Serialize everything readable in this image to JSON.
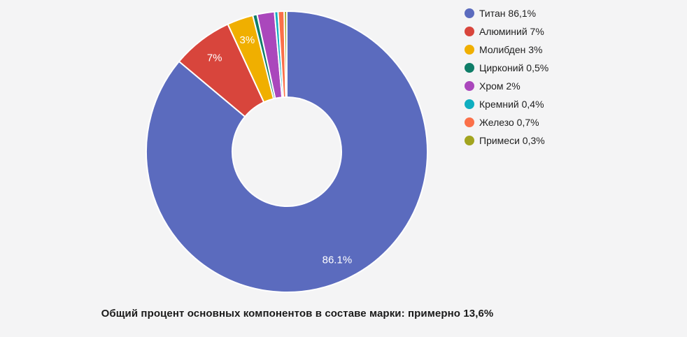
{
  "background_color": "#f4f4f5",
  "chart_data": {
    "type": "pie",
    "subtype": "donut",
    "title": "",
    "categories": [
      "Титан",
      "Алюминий",
      "Молибден",
      "Цирконий",
      "Хром",
      "Кремний",
      "Железо",
      "Примеси"
    ],
    "values": [
      86.1,
      7,
      3,
      0.5,
      2,
      0.4,
      0.7,
      0.3
    ],
    "colors": [
      "#5B6BBE",
      "#D8453C",
      "#F0AF00",
      "#0F7D68",
      "#AA47BC",
      "#0FAEC0",
      "#FB7049",
      "#A2A41F"
    ],
    "slice_labels": [
      "86.1%",
      "7%",
      "3%",
      "",
      "",
      "",
      "",
      ""
    ],
    "slice_label_color": "#ffffff",
    "slice_separator_color": "#ffffff",
    "start_angle_deg": 0,
    "direction": "clockwise",
    "inner_radius_ratio": 0.39,
    "legend_position": "right",
    "hole_color": "#f4f4f5"
  },
  "legend": {
    "items": [
      {
        "label": "Титан 86,1%",
        "color": "#5B6BBE"
      },
      {
        "label": "Алюминий 7%",
        "color": "#D8453C"
      },
      {
        "label": "Молибден 3%",
        "color": "#F0AF00"
      },
      {
        "label": "Цирконий 0,5%",
        "color": "#0F7D68"
      },
      {
        "label": "Хром 2%",
        "color": "#AA47BC"
      },
      {
        "label": "Кремний 0,4%",
        "color": "#0FAEC0"
      },
      {
        "label": "Железо 0,7%",
        "color": "#FB7049"
      },
      {
        "label": "Примеси 0,3%",
        "color": "#A2A41F"
      }
    ]
  },
  "caption": {
    "text": "Общий процент основных компонентов в составе марки: примерно 13,6%"
  }
}
